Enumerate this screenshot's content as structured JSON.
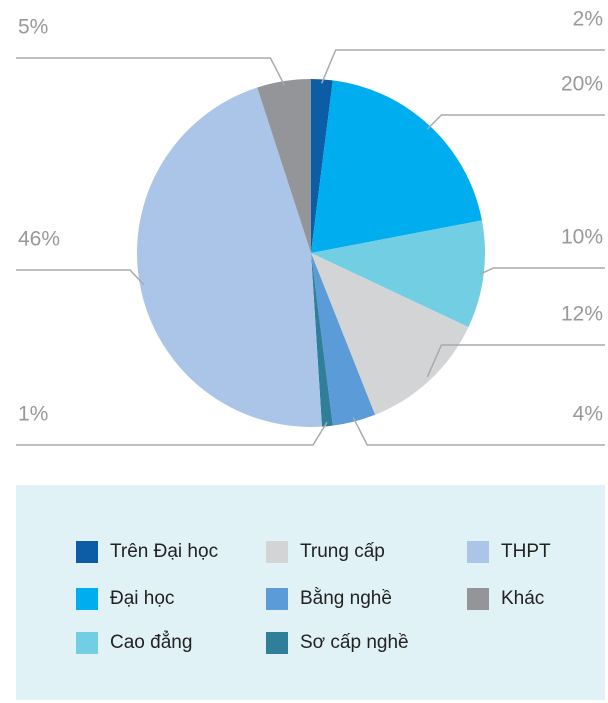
{
  "chart_data": {
    "type": "pie",
    "categories": [
      "Trên Đại học",
      "Đại học",
      "Cao đẳng",
      "Trung cấp",
      "Bằng nghề",
      "Sơ cấp nghề",
      "THPT",
      "Khác"
    ],
    "values": [
      2,
      20,
      10,
      12,
      4,
      1,
      46,
      5
    ],
    "value_labels": [
      "2%",
      "20%",
      "10%",
      "12%",
      "4%",
      "1%",
      "46%",
      "5%"
    ],
    "colors": [
      "#0b5ea6",
      "#00aeef",
      "#72cee3",
      "#d3d4d6",
      "#5b9bd8",
      "#2f7f9b",
      "#aac5e8",
      "#939598"
    ],
    "legend": "bottom"
  }
}
